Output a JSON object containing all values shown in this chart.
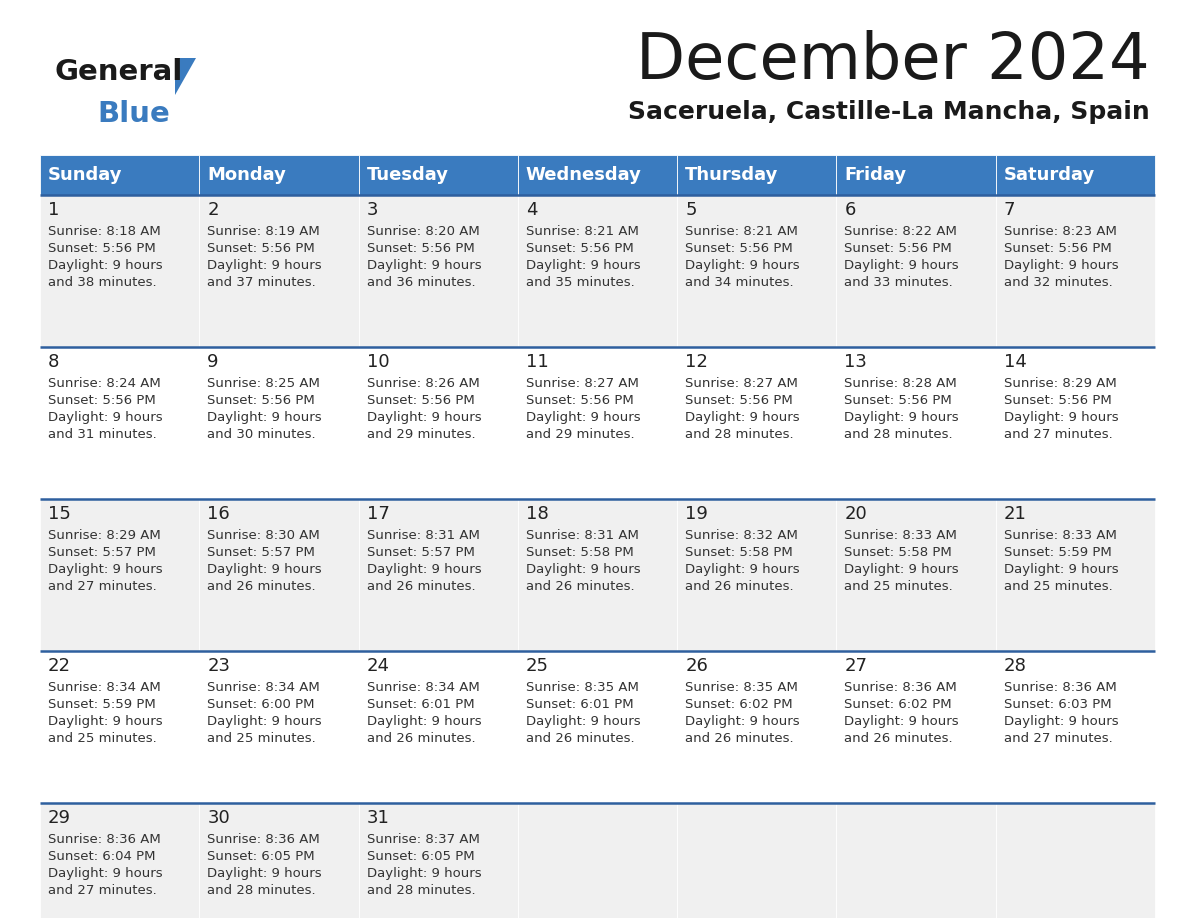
{
  "title": "December 2024",
  "subtitle": "Saceruela, Castille-La Mancha, Spain",
  "header_bg": "#3a7bbf",
  "header_text": "#ffffff",
  "day_names": [
    "Sunday",
    "Monday",
    "Tuesday",
    "Wednesday",
    "Thursday",
    "Friday",
    "Saturday"
  ],
  "row_bg_odd": "#f0f0f0",
  "row_bg_even": "#ffffff",
  "separator_color": "#2e5f9e",
  "date_color": "#222222",
  "text_color": "#333333",
  "days": [
    {
      "date": 1,
      "col": 0,
      "row": 0,
      "sunrise": "8:18 AM",
      "sunset": "5:56 PM",
      "daylight_hours": 9,
      "daylight_minutes": 38
    },
    {
      "date": 2,
      "col": 1,
      "row": 0,
      "sunrise": "8:19 AM",
      "sunset": "5:56 PM",
      "daylight_hours": 9,
      "daylight_minutes": 37
    },
    {
      "date": 3,
      "col": 2,
      "row": 0,
      "sunrise": "8:20 AM",
      "sunset": "5:56 PM",
      "daylight_hours": 9,
      "daylight_minutes": 36
    },
    {
      "date": 4,
      "col": 3,
      "row": 0,
      "sunrise": "8:21 AM",
      "sunset": "5:56 PM",
      "daylight_hours": 9,
      "daylight_minutes": 35
    },
    {
      "date": 5,
      "col": 4,
      "row": 0,
      "sunrise": "8:21 AM",
      "sunset": "5:56 PM",
      "daylight_hours": 9,
      "daylight_minutes": 34
    },
    {
      "date": 6,
      "col": 5,
      "row": 0,
      "sunrise": "8:22 AM",
      "sunset": "5:56 PM",
      "daylight_hours": 9,
      "daylight_minutes": 33
    },
    {
      "date": 7,
      "col": 6,
      "row": 0,
      "sunrise": "8:23 AM",
      "sunset": "5:56 PM",
      "daylight_hours": 9,
      "daylight_minutes": 32
    },
    {
      "date": 8,
      "col": 0,
      "row": 1,
      "sunrise": "8:24 AM",
      "sunset": "5:56 PM",
      "daylight_hours": 9,
      "daylight_minutes": 31
    },
    {
      "date": 9,
      "col": 1,
      "row": 1,
      "sunrise": "8:25 AM",
      "sunset": "5:56 PM",
      "daylight_hours": 9,
      "daylight_minutes": 30
    },
    {
      "date": 10,
      "col": 2,
      "row": 1,
      "sunrise": "8:26 AM",
      "sunset": "5:56 PM",
      "daylight_hours": 9,
      "daylight_minutes": 29
    },
    {
      "date": 11,
      "col": 3,
      "row": 1,
      "sunrise": "8:27 AM",
      "sunset": "5:56 PM",
      "daylight_hours": 9,
      "daylight_minutes": 29
    },
    {
      "date": 12,
      "col": 4,
      "row": 1,
      "sunrise": "8:27 AM",
      "sunset": "5:56 PM",
      "daylight_hours": 9,
      "daylight_minutes": 28
    },
    {
      "date": 13,
      "col": 5,
      "row": 1,
      "sunrise": "8:28 AM",
      "sunset": "5:56 PM",
      "daylight_hours": 9,
      "daylight_minutes": 28
    },
    {
      "date": 14,
      "col": 6,
      "row": 1,
      "sunrise": "8:29 AM",
      "sunset": "5:56 PM",
      "daylight_hours": 9,
      "daylight_minutes": 27
    },
    {
      "date": 15,
      "col": 0,
      "row": 2,
      "sunrise": "8:29 AM",
      "sunset": "5:57 PM",
      "daylight_hours": 9,
      "daylight_minutes": 27
    },
    {
      "date": 16,
      "col": 1,
      "row": 2,
      "sunrise": "8:30 AM",
      "sunset": "5:57 PM",
      "daylight_hours": 9,
      "daylight_minutes": 26
    },
    {
      "date": 17,
      "col": 2,
      "row": 2,
      "sunrise": "8:31 AM",
      "sunset": "5:57 PM",
      "daylight_hours": 9,
      "daylight_minutes": 26
    },
    {
      "date": 18,
      "col": 3,
      "row": 2,
      "sunrise": "8:31 AM",
      "sunset": "5:58 PM",
      "daylight_hours": 9,
      "daylight_minutes": 26
    },
    {
      "date": 19,
      "col": 4,
      "row": 2,
      "sunrise": "8:32 AM",
      "sunset": "5:58 PM",
      "daylight_hours": 9,
      "daylight_minutes": 26
    },
    {
      "date": 20,
      "col": 5,
      "row": 2,
      "sunrise": "8:33 AM",
      "sunset": "5:58 PM",
      "daylight_hours": 9,
      "daylight_minutes": 25
    },
    {
      "date": 21,
      "col": 6,
      "row": 2,
      "sunrise": "8:33 AM",
      "sunset": "5:59 PM",
      "daylight_hours": 9,
      "daylight_minutes": 25
    },
    {
      "date": 22,
      "col": 0,
      "row": 3,
      "sunrise": "8:34 AM",
      "sunset": "5:59 PM",
      "daylight_hours": 9,
      "daylight_minutes": 25
    },
    {
      "date": 23,
      "col": 1,
      "row": 3,
      "sunrise": "8:34 AM",
      "sunset": "6:00 PM",
      "daylight_hours": 9,
      "daylight_minutes": 25
    },
    {
      "date": 24,
      "col": 2,
      "row": 3,
      "sunrise": "8:34 AM",
      "sunset": "6:01 PM",
      "daylight_hours": 9,
      "daylight_minutes": 26
    },
    {
      "date": 25,
      "col": 3,
      "row": 3,
      "sunrise": "8:35 AM",
      "sunset": "6:01 PM",
      "daylight_hours": 9,
      "daylight_minutes": 26
    },
    {
      "date": 26,
      "col": 4,
      "row": 3,
      "sunrise": "8:35 AM",
      "sunset": "6:02 PM",
      "daylight_hours": 9,
      "daylight_minutes": 26
    },
    {
      "date": 27,
      "col": 5,
      "row": 3,
      "sunrise": "8:36 AM",
      "sunset": "6:02 PM",
      "daylight_hours": 9,
      "daylight_minutes": 26
    },
    {
      "date": 28,
      "col": 6,
      "row": 3,
      "sunrise": "8:36 AM",
      "sunset": "6:03 PM",
      "daylight_hours": 9,
      "daylight_minutes": 27
    },
    {
      "date": 29,
      "col": 0,
      "row": 4,
      "sunrise": "8:36 AM",
      "sunset": "6:04 PM",
      "daylight_hours": 9,
      "daylight_minutes": 27
    },
    {
      "date": 30,
      "col": 1,
      "row": 4,
      "sunrise": "8:36 AM",
      "sunset": "6:05 PM",
      "daylight_hours": 9,
      "daylight_minutes": 28
    },
    {
      "date": 31,
      "col": 2,
      "row": 4,
      "sunrise": "8:37 AM",
      "sunset": "6:05 PM",
      "daylight_hours": 9,
      "daylight_minutes": 28
    }
  ]
}
